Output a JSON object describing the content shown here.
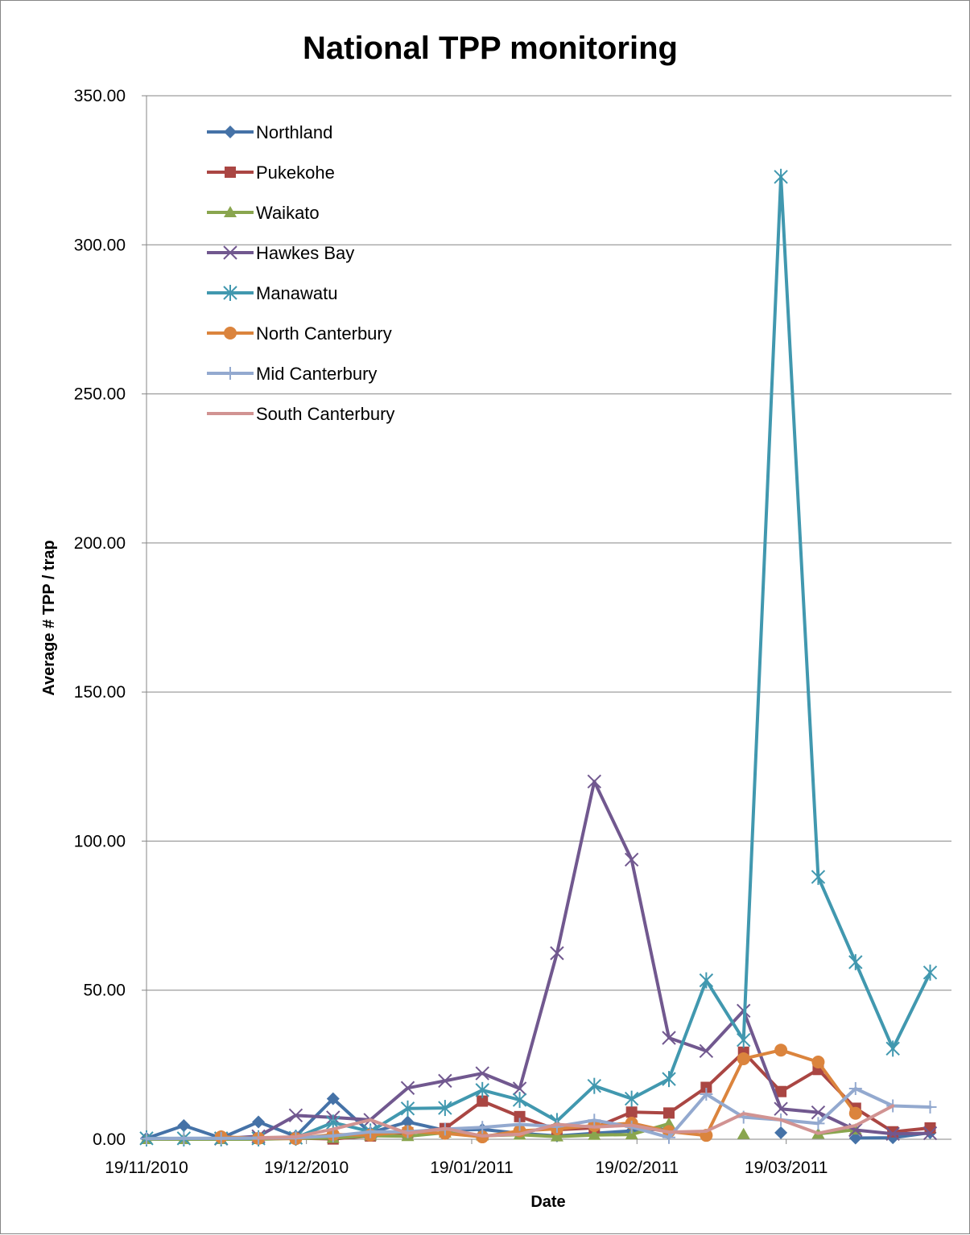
{
  "chart_data": {
    "type": "line",
    "title": "National TPP monitoring",
    "xlabel": "Date",
    "ylabel": "Average # TPP / trap",
    "ylim": [
      0,
      350
    ],
    "y_ticks": [
      "0.00",
      "50.00",
      "100.00",
      "150.00",
      "200.00",
      "250.00",
      "300.00",
      "350.00"
    ],
    "x_ticks": [
      {
        "date": "2010-11-19",
        "label": "19/11/2010"
      },
      {
        "date": "2010-12-19",
        "label": "19/12/2010"
      },
      {
        "date": "2011-01-19",
        "label": "19/01/2011"
      },
      {
        "date": "2011-02-19",
        "label": "19/02/2011"
      },
      {
        "date": "2011-03-19",
        "label": "19/03/2011"
      }
    ],
    "xlim": [
      "2010-11-19",
      "2011-04-19"
    ],
    "grid": "horizontal",
    "legend_position": "top-left",
    "x": [
      "2010-11-19",
      "2010-11-26",
      "2010-12-03",
      "2010-12-10",
      "2010-12-17",
      "2010-12-24",
      "2010-12-31",
      "2011-01-07",
      "2011-01-14",
      "2011-01-21",
      "2011-01-28",
      "2011-02-04",
      "2011-02-11",
      "2011-02-18",
      "2011-02-25",
      "2011-03-04",
      "2011-03-11",
      "2011-03-18",
      "2011-03-25",
      "2011-04-01",
      "2011-04-08",
      "2011-04-15",
      "2011-04-19"
    ],
    "series": [
      {
        "name": "Northland",
        "color": "#4572A7",
        "marker": "diamond",
        "values": [
          0.3,
          4.6,
          0.4,
          5.8,
          1.0,
          13.6,
          2.2,
          5.8,
          3.0,
          3.3,
          2.0,
          1.1,
          2.0,
          2.8,
          3.5,
          null,
          null,
          2.2,
          null,
          0.4,
          0.5,
          2.2,
          null
        ]
      },
      {
        "name": "Pukekohe",
        "color": "#AA4643",
        "marker": "square",
        "values": [
          null,
          null,
          null,
          0.3,
          0.4,
          0.1,
          1.1,
          2.2,
          3.6,
          12.8,
          7.6,
          3.2,
          3.8,
          9.1,
          8.8,
          17.4,
          29.2,
          16.0,
          23.4,
          10.4,
          2.5,
          3.8,
          null
        ]
      },
      {
        "name": "Waikato",
        "color": "#89A54E",
        "marker": "triangle",
        "values": [
          0.0,
          0.0,
          0.0,
          0.0,
          0.3,
          0.4,
          1.2,
          1.0,
          2.2,
          1.2,
          1.5,
          0.9,
          1.4,
          1.6,
          5.2,
          null,
          1.7,
          null,
          1.8,
          3.2,
          null,
          null,
          null
        ]
      },
      {
        "name": "Hawkes Bay",
        "color": "#71588F",
        "marker": "x",
        "values": [
          null,
          null,
          0.2,
          1.0,
          8.0,
          7.3,
          6.5,
          17.2,
          19.6,
          22.1,
          17.0,
          62.4,
          120.0,
          93.8,
          34.0,
          29.6,
          43.1,
          10.2,
          9.0,
          3.1,
          1.8,
          2.0,
          null
        ]
      },
      {
        "name": "Manawatu",
        "color": "#4198AF",
        "marker": "asterisk",
        "values": [
          0.3,
          0.3,
          0.3,
          0.3,
          0.5,
          5.6,
          2.6,
          10.3,
          10.5,
          16.5,
          13.2,
          6.1,
          17.9,
          13.6,
          20.2,
          53.3,
          33.3,
          322.8,
          88.0,
          59.4,
          30.4,
          55.9,
          null
        ]
      },
      {
        "name": "North Canterbury",
        "color": "#DB843D",
        "marker": "circle",
        "values": [
          null,
          null,
          0.8,
          0.3,
          0.2,
          1.6,
          1.4,
          2.6,
          2.0,
          0.8,
          2.8,
          3.5,
          4.6,
          5.4,
          2.6,
          1.3,
          27.0,
          29.9,
          25.9,
          8.7,
          null,
          null,
          null
        ]
      },
      {
        "name": "Mid Canterbury",
        "color": "#93A9CF",
        "marker": "plus",
        "values": [
          0.2,
          0.3,
          0.3,
          0.4,
          0.5,
          1.1,
          2.5,
          2.5,
          3.4,
          4.0,
          5.0,
          4.3,
          6.4,
          4.1,
          0.6,
          15.1,
          7.4,
          6.5,
          5.3,
          17.0,
          11.2,
          10.8,
          null
        ]
      },
      {
        "name": "South Canterbury",
        "color": "#D19392",
        "marker": "none",
        "values": [
          null,
          null,
          null,
          0.5,
          0.8,
          3.4,
          6.5,
          2.0,
          3.6,
          1.1,
          1.7,
          5.0,
          4.1,
          4.7,
          2.4,
          2.7,
          8.6,
          6.5,
          2.0,
          4.6,
          11.2,
          null,
          null
        ]
      }
    ]
  }
}
